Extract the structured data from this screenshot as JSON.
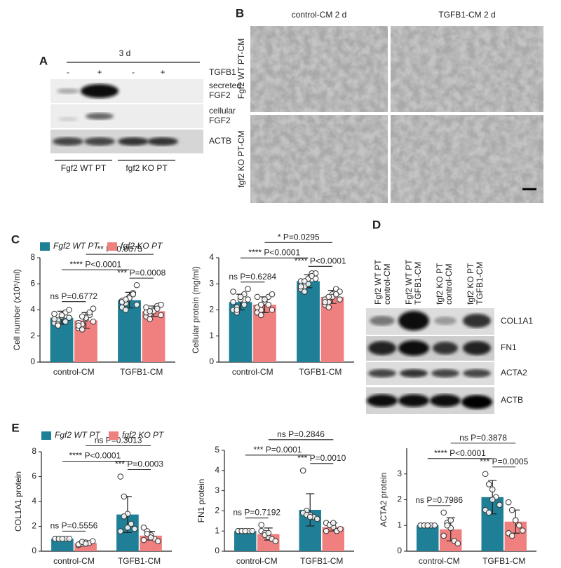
{
  "panels": {
    "A": {
      "label": "A",
      "time": "3 d",
      "treatment_label": "TGFB1",
      "treatment_signs": [
        "-",
        "+",
        "-",
        "+"
      ],
      "rows": [
        [
          "secreted",
          "FGF2"
        ],
        [
          "cellular",
          "FGF2"
        ],
        [
          "ACTB"
        ]
      ],
      "groups": [
        "Fgf2 WT PT",
        "fgf2 KO PT"
      ]
    },
    "B": {
      "label": "B",
      "columns": [
        "control-CM 2 d",
        "TGFB1-CM 2 d"
      ],
      "rows": [
        "Fgf2 WT PT-CM",
        "fgf2 KO PT-CM"
      ]
    },
    "C": {
      "label": "C"
    },
    "D": {
      "label": "D",
      "lanes": [
        [
          "Fgf2 WT PT",
          "control-CM"
        ],
        [
          "Fgf2 WT PT",
          "TGFB1-CM"
        ],
        [
          "fgf2 KO PT",
          "control-CM"
        ],
        [
          "fgf2 KO PT",
          "TGFB1-CM"
        ]
      ],
      "rows": [
        "COL1A1",
        "FN1",
        "ACTA2",
        "ACTB"
      ]
    },
    "E": {
      "label": "E"
    }
  },
  "chart_data": [
    {
      "type": "bar",
      "ylabel": "Cell number (x10⁵/ml)",
      "categories": [
        "control-CM",
        "TGFB1-CM"
      ],
      "ylim": [
        0,
        8
      ],
      "yticks": [
        0,
        2,
        4,
        6,
        8
      ],
      "legend": true,
      "series": [
        {
          "name": "Fgf2 WT PT",
          "color": "#1e7f96",
          "values": [
            3.4,
            4.75
          ],
          "errors": [
            0.5,
            0.6
          ],
          "points": [
            [
              3.0,
              3.2,
              3.5,
              3.8,
              4.0,
              3.3,
              2.9,
              3.6,
              3.1,
              3.4,
              3.7,
              2.8
            ],
            [
              4.2,
              4.5,
              5.0,
              5.3,
              5.9,
              4.7,
              4.0,
              4.9,
              5.2,
              4.4,
              4.6,
              4.8
            ]
          ]
        },
        {
          "name": "fgf2 KO PT",
          "color": "#f08080",
          "values": [
            3.2,
            3.9
          ],
          "errors": [
            0.6,
            0.4
          ],
          "points": [
            [
              2.6,
              2.9,
              3.3,
              3.6,
              4.1,
              3.0,
              2.5,
              3.4,
              3.8,
              3.1,
              2.8,
              3.5
            ],
            [
              3.5,
              3.7,
              4.0,
              4.3,
              4.4,
              3.8,
              3.3,
              3.9,
              4.1,
              3.6,
              4.2,
              3.9
            ]
          ]
        }
      ],
      "annotations": [
        "ns P=0.6772",
        "*** P=0.0008",
        "**** P<0.0001",
        "** P=0.0075"
      ]
    },
    {
      "type": "bar",
      "ylabel": "Cellular protein (mg/ml)",
      "categories": [
        "control-CM",
        "TGFB1-CM"
      ],
      "ylim": [
        0,
        4
      ],
      "yticks": [
        0,
        1,
        2,
        3,
        4
      ],
      "legend": false,
      "series": [
        {
          "name": "Fgf2 WT PT",
          "color": "#1e7f96",
          "values": [
            2.3,
            3.1
          ],
          "errors": [
            0.3,
            0.25
          ],
          "points": [
            [
              2.0,
              2.1,
              2.4,
              2.6,
              2.8,
              2.3,
              1.9,
              2.5,
              2.2,
              2.4,
              2.7,
              2.0
            ],
            [
              2.8,
              2.9,
              3.2,
              3.4,
              3.4,
              3.1,
              2.7,
              3.0,
              3.3,
              3.2,
              2.9,
              3.1
            ]
          ]
        },
        {
          "name": "fgf2 KO PT",
          "color": "#f08080",
          "values": [
            2.2,
            2.5
          ],
          "errors": [
            0.3,
            0.25
          ],
          "points": [
            [
              1.9,
              2.0,
              2.3,
              2.5,
              2.6,
              2.1,
              1.8,
              2.4,
              2.2,
              2.0,
              2.5,
              2.2
            ],
            [
              2.2,
              2.3,
              2.6,
              2.8,
              2.7,
              2.4,
              2.1,
              2.5,
              2.6,
              2.4,
              2.3,
              2.5
            ]
          ]
        }
      ],
      "annotations": [
        "ns P=0.6284",
        "**** P<0.0001",
        "**** P<0.0001",
        "* P=0.0295"
      ]
    },
    {
      "type": "bar",
      "ylabel": "COL1A1 protein",
      "categories": [
        "control-CM",
        "TGFB1-CM"
      ],
      "ylim": [
        0,
        8
      ],
      "yticks": [
        0,
        2,
        4,
        6,
        8
      ],
      "legend": true,
      "series": [
        {
          "name": "Fgf2 WT PT",
          "color": "#1e7f96",
          "values": [
            1.0,
            2.95
          ],
          "errors": [
            0.05,
            1.45
          ],
          "points": [
            [
              1.0,
              1.0,
              1.0,
              1.0,
              1.0,
              1.0,
              1.0,
              1.0
            ],
            [
              6.0,
              4.4,
              3.0,
              2.2,
              1.8,
              1.6,
              2.8,
              1.9
            ]
          ]
        },
        {
          "name": "fgf2 KO PT",
          "color": "#f08080",
          "values": [
            0.65,
            1.25
          ],
          "errors": [
            0.15,
            0.35
          ],
          "points": [
            [
              0.5,
              0.6,
              0.7,
              0.65,
              0.8,
              0.55,
              0.75,
              0.6
            ],
            [
              1.9,
              1.6,
              1.3,
              1.0,
              0.8,
              0.9,
              1.4,
              1.1
            ]
          ]
        }
      ],
      "annotations": [
        "ns P=0.5556",
        "*** P=0.0003",
        "**** P<0.0001",
        "ns P=0.3013"
      ]
    },
    {
      "type": "bar",
      "ylabel": "FN1 protein",
      "categories": [
        "control-CM",
        "TGFB1-CM"
      ],
      "ylim": [
        0,
        5
      ],
      "yticks": [
        0,
        1,
        2,
        3,
        4,
        5
      ],
      "legend": false,
      "series": [
        {
          "name": "Fgf2 WT PT",
          "color": "#1e7f96",
          "values": [
            1.0,
            2.05
          ],
          "errors": [
            0.03,
            0.8
          ],
          "points": [
            [
              1.0,
              1.0,
              1.0,
              1.0,
              1.0,
              1.0,
              1.0,
              1.0
            ],
            [
              4.0,
              2.0,
              1.8,
              1.7,
              1.6,
              1.9,
              1.8,
              1.7
            ]
          ]
        },
        {
          "name": "fgf2 KO PT",
          "color": "#f08080",
          "values": [
            0.85,
            1.2
          ],
          "errors": [
            0.3,
            0.2
          ],
          "points": [
            [
              1.0,
              0.9,
              0.7,
              0.6,
              0.5,
              1.3,
              0.8,
              0.9
            ],
            [
              1.4,
              1.3,
              1.2,
              1.0,
              1.1,
              1.0,
              1.3,
              1.4
            ]
          ]
        }
      ],
      "annotations": [
        "ns P=0.7192",
        "*** P=0.0010",
        "*** P=0.0001",
        "ns P=0.2846"
      ]
    },
    {
      "type": "bar",
      "ylabel": "ACTA2 protein",
      "categories": [
        "control-CM",
        "TGFB1-CM"
      ],
      "ylim": [
        0,
        4
      ],
      "yticks": [
        0,
        1,
        2,
        3
      ],
      "legend": false,
      "series": [
        {
          "name": "Fgf2 WT PT",
          "color": "#1e7f96",
          "values": [
            1.0,
            2.1
          ],
          "errors": [
            0.03,
            0.65
          ],
          "points": [
            [
              1.0,
              1.0,
              1.0,
              1.0,
              1.0,
              1.0,
              1.0,
              1.0
            ],
            [
              3.0,
              2.6,
              2.4,
              2.1,
              1.8,
              1.6,
              1.5,
              2.0
            ]
          ]
        },
        {
          "name": "fgf2 KO PT",
          "color": "#f08080",
          "values": [
            0.85,
            1.15
          ],
          "errors": [
            0.45,
            0.45
          ],
          "points": [
            [
              1.5,
              1.1,
              0.9,
              0.4,
              0.3,
              0.6,
              1.0,
              1.2
            ],
            [
              1.9,
              1.6,
              1.2,
              1.0,
              0.8,
              0.7,
              0.6,
              1.2
            ]
          ]
        }
      ],
      "annotations": [
        "ns P=0.7986",
        "*** P=0.0005",
        "**** P<0.0001",
        "ns P=0.3878"
      ]
    }
  ]
}
